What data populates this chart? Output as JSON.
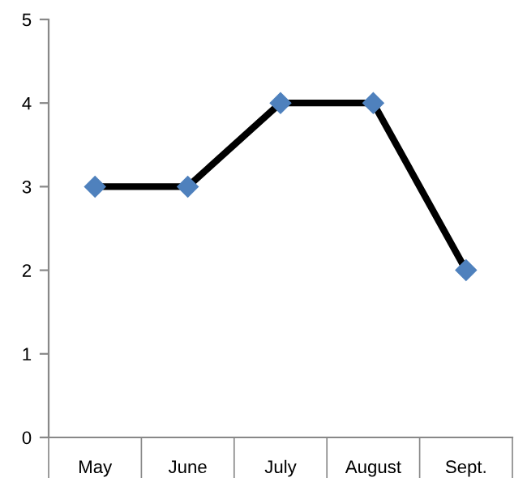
{
  "chart_data": {
    "type": "line",
    "categories": [
      "May",
      "June",
      "July",
      "August",
      "Sept."
    ],
    "series": [
      {
        "color": "#000000",
        "colors": [
          "#4f81bd",
          "#4f81bd",
          "#4f81bd",
          "#4f81bd",
          "#4f81bd"
        ],
        "values": [
          3,
          3,
          4,
          4,
          2
        ]
      }
    ],
    "ylim": [
      0,
      5
    ],
    "yticks": [
      0,
      1,
      2,
      3,
      4,
      5
    ],
    "grid": false,
    "marker": "diamond",
    "line_style": "solid"
  }
}
